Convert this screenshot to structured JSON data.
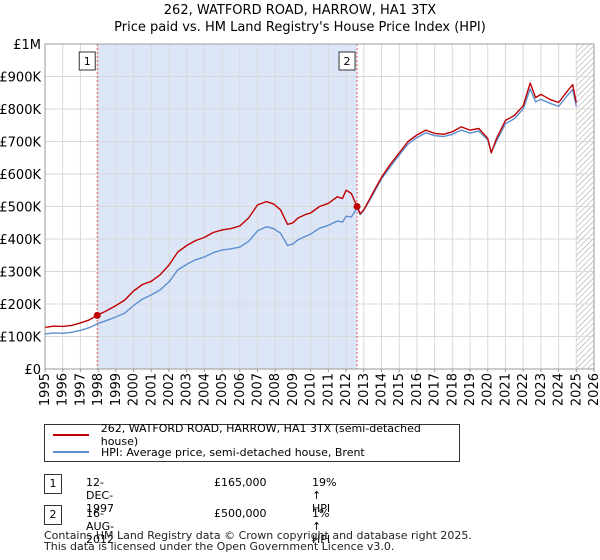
{
  "title_line1": "262, WATFORD ROAD, HARROW, HA1 3TX",
  "title_line2": "Price paid vs. HM Land Registry's House Price Index (HPI)",
  "chart_data": {
    "type": "line",
    "title": "262, WATFORD ROAD, HARROW, HA1 3TX — Price paid vs. HM Land Registry's House Price Index (HPI)",
    "xlabel": "",
    "ylabel": "",
    "xlim": [
      1995,
      2026
    ],
    "ylim": [
      0,
      1000000
    ],
    "x_ticks": [
      1995,
      1996,
      1997,
      1998,
      1999,
      2000,
      2001,
      2002,
      2003,
      2004,
      2005,
      2006,
      2007,
      2008,
      2009,
      2010,
      2011,
      2012,
      2013,
      2014,
      2015,
      2016,
      2017,
      2018,
      2019,
      2020,
      2021,
      2022,
      2023,
      2024,
      2025,
      2026
    ],
    "y_ticks": [
      {
        "value": 0,
        "label": "£0"
      },
      {
        "value": 100000,
        "label": "£100K"
      },
      {
        "value": 200000,
        "label": "£200K"
      },
      {
        "value": 300000,
        "label": "£300K"
      },
      {
        "value": 400000,
        "label": "£400K"
      },
      {
        "value": 500000,
        "label": "£500K"
      },
      {
        "value": 600000,
        "label": "£600K"
      },
      {
        "value": 700000,
        "label": "£700K"
      },
      {
        "value": 800000,
        "label": "£800K"
      },
      {
        "value": 900000,
        "label": "£900K"
      },
      {
        "value": 1000000,
        "label": "£1M"
      }
    ],
    "grid": true,
    "shaded_regions": [
      {
        "from": 1997.95,
        "to": 2012.62,
        "note": "ownership period"
      },
      {
        "from": 2025.0,
        "to": 2026.0,
        "note": "hatched future period"
      }
    ],
    "series": [
      {
        "name": "262, WATFORD ROAD, HARROW, HA1 3TX (semi-detached house)",
        "color": "#c00000",
        "x": [
          1995.0,
          1995.5,
          1996.0,
          1996.5,
          1997.0,
          1997.5,
          1997.95,
          1998.5,
          1999.0,
          1999.5,
          2000.0,
          2000.5,
          2001.0,
          2001.5,
          2002.0,
          2002.5,
          2003.0,
          2003.5,
          2004.0,
          2004.5,
          2005.0,
          2005.5,
          2006.0,
          2006.5,
          2007.0,
          2007.5,
          2007.9,
          2008.3,
          2008.7,
          2009.0,
          2009.3,
          2009.7,
          2010.0,
          2010.5,
          2011.0,
          2011.5,
          2011.8,
          2012.0,
          2012.3,
          2012.62,
          2012.8,
          2013.0,
          2013.5,
          2014.0,
          2014.5,
          2015.0,
          2015.5,
          2016.0,
          2016.5,
          2017.0,
          2017.5,
          2018.0,
          2018.5,
          2019.0,
          2019.5,
          2020.0,
          2020.2,
          2020.5,
          2021.0,
          2021.5,
          2022.0,
          2022.4,
          2022.7,
          2023.0,
          2023.5,
          2024.0,
          2024.5,
          2024.8,
          2025.0
        ],
        "values": [
          128000,
          132000,
          131000,
          134000,
          142000,
          151000,
          165000,
          180000,
          195000,
          212000,
          240000,
          260000,
          270000,
          290000,
          320000,
          360000,
          380000,
          395000,
          405000,
          420000,
          428000,
          432000,
          440000,
          465000,
          505000,
          515000,
          508000,
          490000,
          445000,
          450000,
          465000,
          475000,
          480000,
          500000,
          510000,
          530000,
          525000,
          550000,
          540000,
          500000,
          478000,
          490000,
          540000,
          590000,
          630000,
          665000,
          700000,
          720000,
          735000,
          725000,
          722000,
          730000,
          745000,
          735000,
          740000,
          710000,
          665000,
          710000,
          765000,
          780000,
          810000,
          880000,
          835000,
          845000,
          830000,
          820000,
          855000,
          875000,
          820000
        ]
      },
      {
        "name": "HPI: Average price, semi-detached house, Brent",
        "color": "#5b8fd0",
        "x": [
          1995.0,
          1995.5,
          1996.0,
          1996.5,
          1997.0,
          1997.5,
          1997.95,
          1998.5,
          1999.0,
          1999.5,
          2000.0,
          2000.5,
          2001.0,
          2001.5,
          2002.0,
          2002.5,
          2003.0,
          2003.5,
          2004.0,
          2004.5,
          2005.0,
          2005.5,
          2006.0,
          2006.5,
          2007.0,
          2007.5,
          2007.9,
          2008.3,
          2008.7,
          2009.0,
          2009.3,
          2009.7,
          2010.0,
          2010.5,
          2011.0,
          2011.5,
          2011.8,
          2012.0,
          2012.3,
          2012.62,
          2012.8,
          2013.0,
          2013.5,
          2014.0,
          2014.5,
          2015.0,
          2015.5,
          2016.0,
          2016.5,
          2017.0,
          2017.5,
          2018.0,
          2018.5,
          2019.0,
          2019.5,
          2020.0,
          2020.2,
          2020.5,
          2021.0,
          2021.5,
          2022.0,
          2022.4,
          2022.7,
          2023.0,
          2023.5,
          2024.0,
          2024.5,
          2024.8,
          2025.0
        ],
        "values": [
          108000,
          111000,
          110000,
          113000,
          119000,
          127000,
          139000,
          150000,
          160000,
          172000,
          195000,
          215000,
          228000,
          243000,
          268000,
          305000,
          322000,
          336000,
          345000,
          358000,
          366000,
          370000,
          375000,
          393000,
          425000,
          438000,
          432000,
          418000,
          380000,
          385000,
          398000,
          408000,
          415000,
          433000,
          442000,
          455000,
          452000,
          470000,
          468000,
          495000,
          475000,
          488000,
          535000,
          585000,
          622000,
          658000,
          692000,
          712000,
          727000,
          718000,
          715000,
          722000,
          735000,
          726000,
          732000,
          705000,
          668000,
          702000,
          755000,
          770000,
          800000,
          862000,
          822000,
          830000,
          818000,
          808000,
          842000,
          860000,
          808000
        ]
      }
    ],
    "sale_points": [
      {
        "label": "1",
        "x": 1997.95,
        "value": 165000
      },
      {
        "label": "2",
        "x": 2012.62,
        "value": 500000
      }
    ]
  },
  "legend": {
    "property_label": "262, WATFORD ROAD, HARROW, HA1 3TX (semi-detached house)",
    "hpi_label": "HPI: Average price, semi-detached house, Brent"
  },
  "transactions": [
    {
      "num": "1",
      "date": "12-DEC-1997",
      "price": "£165,000",
      "hpi": "19% ↑ HPI"
    },
    {
      "num": "2",
      "date": "16-AUG-2012",
      "price": "£500,000",
      "hpi": "1% ↑ HPI"
    }
  ],
  "footer_line1": "Contains HM Land Registry data © Crown copyright and database right 2025.",
  "footer_line2": "This data is licensed under the Open Government Licence v3.0.",
  "colors": {
    "property": "#c00000",
    "hpi": "#5b8fd0",
    "shade": "#dde6f7",
    "grid": "#d9d9d9"
  }
}
